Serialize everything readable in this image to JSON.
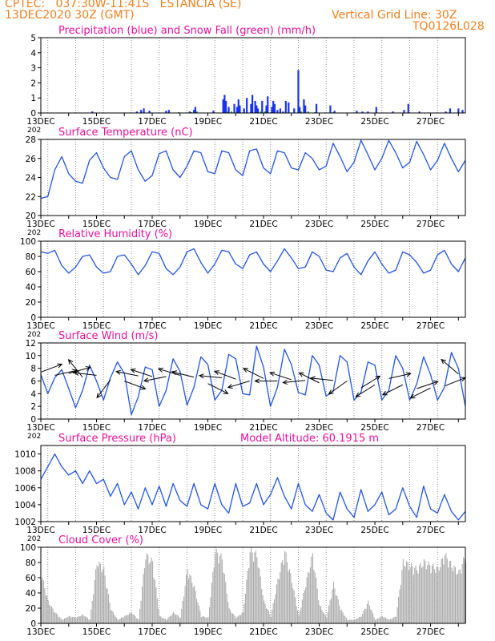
{
  "header": {
    "line1": "CPTEC:   037:30W-11:41S   ESTANCIA (SE)",
    "line2": "13DEC2020 30Z (GMT)",
    "grid_info": "Vertical Grid Line: 30Z",
    "code": "TQ0126L028"
  },
  "x_ticks": [
    "13DEC",
    "15DEC",
    "17DEC",
    "19DEC",
    "21DEC",
    "23DEC",
    "25DEC",
    "27DEC"
  ],
  "year_stub": "202",
  "colors": {
    "title": "#e8109a",
    "header": "#f07f1e",
    "line": "#2255dd",
    "rain": "#1a32f0",
    "snow": "#1a9a1a",
    "cloud": "#aaaaaa",
    "wind": "#000000"
  },
  "chart_data": [
    {
      "type": "bar",
      "title": "Precipitation (blue) and Snow Fall (green) (mm/h)",
      "ylim": [
        0,
        5
      ],
      "yticks": [
        "0",
        "1",
        "2",
        "3",
        "4",
        "5"
      ],
      "x": [
        1.85,
        3.45,
        3.6,
        3.7,
        3.9,
        4.5,
        4.6,
        5.35,
        5.5,
        5.55,
        6.2,
        6.55,
        6.6,
        6.65,
        6.75,
        6.95,
        7.05,
        7.1,
        7.15,
        7.3,
        7.4,
        7.55,
        7.6,
        7.7,
        7.75,
        7.8,
        7.95,
        8.1,
        8.15,
        8.3,
        8.35,
        8.4,
        8.5,
        8.6,
        8.7,
        8.8,
        8.9,
        9.1,
        9.25,
        9.3,
        9.45,
        9.5,
        9.9,
        10.4,
        10.55,
        11.35,
        11.55,
        11.75,
        12.05,
        12.65,
        13.05,
        13.2,
        13.6,
        14.55,
        14.7,
        15.0,
        15.15
      ],
      "values": [
        0.1,
        0.1,
        0.2,
        0.3,
        0.15,
        0.15,
        0.2,
        0.1,
        0.2,
        0.4,
        0.15,
        0.9,
        1.2,
        0.8,
        0.4,
        0.6,
        0.4,
        0.9,
        0.5,
        0.3,
        1.0,
        0.6,
        1.2,
        0.8,
        0.5,
        0.3,
        0.8,
        0.5,
        1.1,
        0.4,
        0.8,
        0.6,
        0.2,
        0.3,
        0.1,
        0.8,
        0.7,
        0.3,
        2.85,
        0.4,
        0.9,
        0.5,
        0.6,
        0.5,
        0.15,
        0.15,
        0.1,
        0.1,
        0.4,
        0.1,
        0.2,
        0.6,
        0.1,
        0.1,
        0.3,
        0.3,
        0.2
      ],
      "snow_x": [
        4.95,
        5.4,
        5.6,
        6.7,
        6.85,
        7.9,
        8.05,
        9.35,
        9.6,
        9.85,
        10.5
      ],
      "snow_values": [
        0.05,
        0.05,
        0.1,
        0.1,
        0.1,
        0.1,
        0.1,
        0.1,
        0.1,
        0.05,
        0.05
      ]
    },
    {
      "type": "line",
      "title": "Surface Temperature (nC)",
      "ylim": [
        20,
        28
      ],
      "yticks": [
        "20",
        "22",
        "24",
        "26",
        "28"
      ],
      "x": [
        0.0,
        0.25,
        0.5,
        0.75,
        1.0,
        1.25,
        1.5,
        1.75,
        2.0,
        2.25,
        2.5,
        2.75,
        3.0,
        3.25,
        3.5,
        3.75,
        4.0,
        4.25,
        4.5,
        4.75,
        5.0,
        5.25,
        5.5,
        5.75,
        6.0,
        6.25,
        6.5,
        6.75,
        7.0,
        7.25,
        7.5,
        7.75,
        8.0,
        8.25,
        8.5,
        8.75,
        9.0,
        9.25,
        9.5,
        9.75,
        10.0,
        10.25,
        10.5,
        10.75,
        11.0,
        11.25,
        11.5,
        11.75,
        12.0,
        12.25,
        12.5,
        12.75,
        13.0,
        13.25,
        13.5,
        13.75,
        14.0,
        14.25,
        14.5,
        14.75,
        15.0,
        15.25
      ],
      "values": [
        21.8,
        22.0,
        24.8,
        26.2,
        24.4,
        23.6,
        23.4,
        25.8,
        26.6,
        25.0,
        24.0,
        23.8,
        26.2,
        26.8,
        24.8,
        23.6,
        24.2,
        26.5,
        26.8,
        24.8,
        24.0,
        25.2,
        26.8,
        26.6,
        24.6,
        24.4,
        26.8,
        26.6,
        24.8,
        24.2,
        26.8,
        27.0,
        25.0,
        24.4,
        26.8,
        26.6,
        25.0,
        24.8,
        26.6,
        26.0,
        24.8,
        25.2,
        27.6,
        26.2,
        24.6,
        25.6,
        27.9,
        26.4,
        24.8,
        26.0,
        27.9,
        26.6,
        25.0,
        25.6,
        27.8,
        26.4,
        24.8,
        25.8,
        27.6,
        26.0,
        24.6,
        25.8
      ],
      "xlabel": "",
      "ylabel": ""
    },
    {
      "type": "line",
      "title": "Relative Humidity (%)",
      "ylim": [
        0,
        100
      ],
      "yticks": [
        "0",
        "20",
        "40",
        "60",
        "80",
        "100"
      ],
      "x": [
        0.0,
        0.25,
        0.5,
        0.75,
        1.0,
        1.25,
        1.5,
        1.75,
        2.0,
        2.25,
        2.5,
        2.75,
        3.0,
        3.25,
        3.5,
        3.75,
        4.0,
        4.25,
        4.5,
        4.75,
        5.0,
        5.25,
        5.5,
        5.75,
        6.0,
        6.25,
        6.5,
        6.75,
        7.0,
        7.25,
        7.5,
        7.75,
        8.0,
        8.25,
        8.5,
        8.75,
        9.0,
        9.25,
        9.5,
        9.75,
        10.0,
        10.25,
        10.5,
        10.75,
        11.0,
        11.25,
        11.5,
        11.75,
        12.0,
        12.25,
        12.5,
        12.75,
        13.0,
        13.25,
        13.5,
        13.75,
        14.0,
        14.25,
        14.5,
        14.75,
        15.0,
        15.25
      ],
      "values": [
        86,
        84,
        88,
        68,
        58,
        66,
        80,
        82,
        66,
        58,
        60,
        80,
        82,
        70,
        56,
        68,
        86,
        84,
        64,
        56,
        66,
        86,
        90,
        72,
        58,
        70,
        88,
        86,
        70,
        64,
        82,
        86,
        70,
        60,
        74,
        90,
        78,
        64,
        66,
        86,
        80,
        62,
        60,
        78,
        84,
        66,
        56,
        74,
        86,
        70,
        58,
        62,
        86,
        82,
        72,
        58,
        62,
        82,
        88,
        70,
        60,
        78
      ],
      "xlabel": "",
      "ylabel": ""
    },
    {
      "type": "line",
      "title": "Surface Wind (m/s)",
      "ylim": [
        0,
        12
      ],
      "yticks": [
        "0",
        "2",
        "4",
        "6",
        "8",
        "10",
        "12"
      ],
      "x": [
        0.0,
        0.25,
        0.5,
        0.75,
        1.0,
        1.25,
        1.5,
        1.75,
        2.0,
        2.25,
        2.5,
        2.75,
        3.0,
        3.25,
        3.5,
        3.75,
        4.0,
        4.25,
        4.5,
        4.75,
        5.0,
        5.25,
        5.5,
        5.75,
        6.0,
        6.25,
        6.5,
        6.75,
        7.0,
        7.25,
        7.5,
        7.75,
        8.0,
        8.25,
        8.5,
        8.75,
        9.0,
        9.25,
        9.5,
        9.75,
        10.0,
        10.25,
        10.5,
        10.75,
        11.0,
        11.25,
        11.5,
        11.75,
        12.0,
        12.25,
        12.5,
        12.75,
        13.0,
        13.25,
        13.5,
        13.75,
        14.0,
        14.25,
        14.5,
        14.75,
        15.0,
        15.25
      ],
      "values": [
        7.0,
        4.0,
        6.5,
        7.8,
        4.8,
        1.8,
        4.5,
        8.5,
        6.0,
        3.0,
        6.5,
        9.0,
        7.2,
        0.7,
        3.5,
        8.2,
        7.8,
        2.0,
        4.5,
        9.5,
        7.5,
        2.2,
        5.0,
        9.8,
        8.6,
        3.0,
        4.5,
        10.2,
        9.5,
        4.0,
        3.8,
        11.5,
        8.2,
        2.0,
        5.0,
        11.0,
        8.6,
        4.2,
        3.8,
        10.0,
        8.5,
        3.6,
        4.4,
        10.0,
        9.0,
        3.0,
        4.2,
        9.0,
        8.5,
        3.0,
        4.5,
        10.0,
        8.0,
        3.0,
        5.5,
        9.8,
        7.0,
        3.0,
        5.0,
        10.5,
        8.0,
        2.0
      ],
      "vectors": {
        "x": [
          0.0,
          0.5,
          1.0,
          1.5,
          2.0,
          2.5,
          3.0,
          3.5,
          4.0,
          4.5,
          5.0,
          5.5,
          6.0,
          6.5,
          7.0,
          7.5,
          8.0,
          8.5,
          9.0,
          9.5,
          10.0,
          10.5,
          11.0,
          11.5,
          12.0,
          12.5,
          13.0,
          13.5,
          14.0,
          14.5,
          15.0
        ],
        "u": [
          0.8,
          0.9,
          0.9,
          -0.4,
          -0.9,
          -0.3,
          0.8,
          -1.0,
          -0.9,
          -1.0,
          -1.0,
          -0.6,
          0.8,
          -1.0,
          -0.8,
          -1.0,
          -0.8,
          -1.0,
          -0.9,
          -1.0,
          -0.8,
          -1.0,
          -0.7,
          0.8,
          -0.8,
          0.9,
          -0.8,
          0.9,
          -0.8,
          1.0,
          -0.7
        ],
        "v": [
          0.3,
          0.2,
          0.25,
          0.5,
          0.1,
          -0.4,
          -0.3,
          0.2,
          0.3,
          -0.2,
          0.3,
          0.15,
          -0.4,
          0.1,
          0.3,
          -0.3,
          0.4,
          0.0,
          0.3,
          -0.1,
          0.4,
          0.1,
          -0.5,
          0.5,
          -0.5,
          0.2,
          -0.4,
          0.3,
          -0.4,
          0.4,
          0.6
        ],
        "y": [
          7.4,
          6.9,
          7.2,
          6.6,
          6.9,
          6.2,
          6.0,
          6.8,
          6.7,
          6.7,
          6.9,
          6.6,
          5.6,
          6.5,
          6.3,
          6.0,
          6.4,
          6.0,
          6.2,
          6.1,
          5.7,
          6.1,
          6.0,
          4.9,
          5.4,
          6.4,
          5.4,
          4.8,
          4.9,
          5.2,
          7.1
        ]
      }
    },
    {
      "type": "line",
      "title": "Surface Pressure (hPa)",
      "annotation": "Model Altitude: 60.1915  m",
      "ylim": [
        1002,
        1011
      ],
      "yticks": [
        "1002",
        "1004",
        "1006",
        "1008",
        "1010"
      ],
      "x": [
        0.0,
        0.25,
        0.5,
        0.75,
        1.0,
        1.25,
        1.5,
        1.75,
        2.0,
        2.25,
        2.5,
        2.75,
        3.0,
        3.25,
        3.5,
        3.75,
        4.0,
        4.25,
        4.5,
        4.75,
        5.0,
        5.25,
        5.5,
        5.75,
        6.0,
        6.25,
        6.5,
        6.75,
        7.0,
        7.25,
        7.5,
        7.75,
        8.0,
        8.25,
        8.5,
        8.75,
        9.0,
        9.25,
        9.5,
        9.75,
        10.0,
        10.25,
        10.5,
        10.75,
        11.0,
        11.25,
        11.5,
        11.75,
        12.0,
        12.25,
        12.5,
        12.75,
        13.0,
        13.25,
        13.5,
        13.75,
        14.0,
        14.25,
        14.5,
        14.75,
        15.0,
        15.25
      ],
      "values": [
        1007,
        1008.5,
        1010,
        1008.5,
        1007.5,
        1008,
        1006.5,
        1008,
        1006.5,
        1007,
        1005,
        1006.5,
        1004,
        1005.5,
        1003.5,
        1006,
        1004,
        1006.2,
        1003.8,
        1006.5,
        1004.5,
        1003.8,
        1006.5,
        1004,
        1003.5,
        1006.5,
        1004,
        1003,
        1006.5,
        1003.8,
        1004.2,
        1006.5,
        1004,
        1005.2,
        1007.2,
        1005,
        1003.5,
        1006.5,
        1004,
        1003.2,
        1005.2,
        1003,
        1002.2,
        1005.5,
        1003.5,
        1002.5,
        1005.8,
        1003.2,
        1004,
        1005.5,
        1002.8,
        1003.5,
        1006,
        1003.8,
        1002.5,
        1006.2,
        1003.5,
        1003,
        1005.2,
        1003.2,
        1002.2,
        1003.2
      ],
      "xlabel": "",
      "ylabel": ""
    },
    {
      "type": "area",
      "title": "Cloud Cover (%)",
      "ylim": [
        0,
        100
      ],
      "yticks": [
        "0",
        "20",
        "40",
        "60",
        "80",
        "100"
      ],
      "x": [
        0.0,
        0.25,
        0.5,
        0.75,
        1.0,
        1.25,
        1.5,
        1.75,
        2.0,
        2.25,
        2.5,
        2.75,
        3.0,
        3.25,
        3.5,
        3.75,
        4.0,
        4.25,
        4.5,
        4.75,
        5.0,
        5.25,
        5.5,
        5.75,
        6.0,
        6.25,
        6.5,
        6.75,
        7.0,
        7.25,
        7.5,
        7.75,
        8.0,
        8.25,
        8.5,
        8.75,
        9.0,
        9.25,
        9.5,
        9.75,
        10.0,
        10.25,
        10.5,
        10.75,
        11.0,
        11.25,
        11.5,
        11.75,
        12.0,
        12.25,
        12.5,
        12.75,
        13.0,
        13.25,
        13.5,
        13.75,
        14.0,
        14.25,
        14.5,
        14.75,
        15.0,
        15.25
      ],
      "values": [
        70,
        30,
        15,
        5,
        10,
        8,
        12,
        5,
        85,
        75,
        20,
        5,
        10,
        15,
        5,
        95,
        85,
        10,
        5,
        15,
        8,
        75,
        50,
        10,
        8,
        100,
        90,
        20,
        8,
        15,
        100,
        95,
        30,
        10,
        60,
        100,
        60,
        10,
        55,
        95,
        25,
        8,
        55,
        20,
        5,
        5,
        10,
        30,
        5,
        10,
        5,
        10,
        85,
        80,
        75,
        85,
        80,
        75,
        95,
        80,
        70,
        95
      ],
      "xlabel": "",
      "ylabel": ""
    }
  ]
}
